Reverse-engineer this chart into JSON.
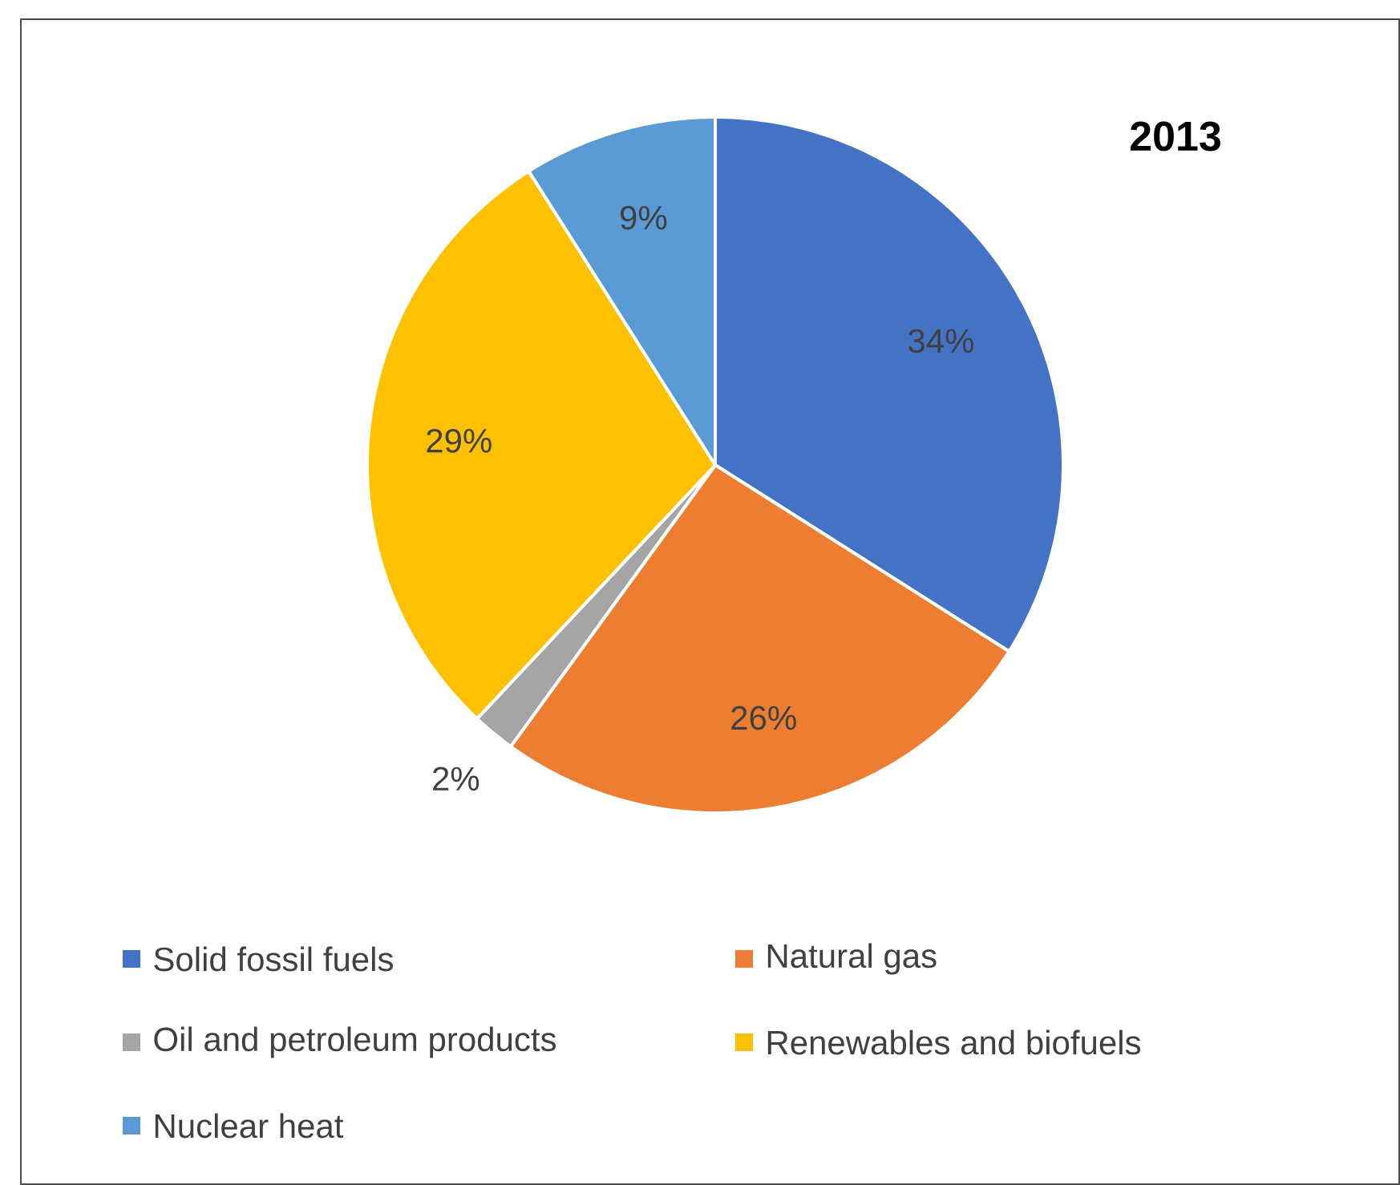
{
  "chart_data": {
    "type": "pie",
    "title": "2013",
    "categories": [
      "Solid fossil fuels",
      "Natural gas",
      "Oil and petroleum products",
      "Renewables and biofuels",
      "Nuclear heat"
    ],
    "values": [
      34,
      26,
      2,
      29,
      9
    ],
    "colors": [
      "#4472c4",
      "#ed7d31",
      "#a5a5a5",
      "#ffc000",
      "#5b9bd5"
    ],
    "value_labels": [
      "34%",
      "26%",
      "2%",
      "29%",
      "9%"
    ],
    "legend": "bottom"
  }
}
